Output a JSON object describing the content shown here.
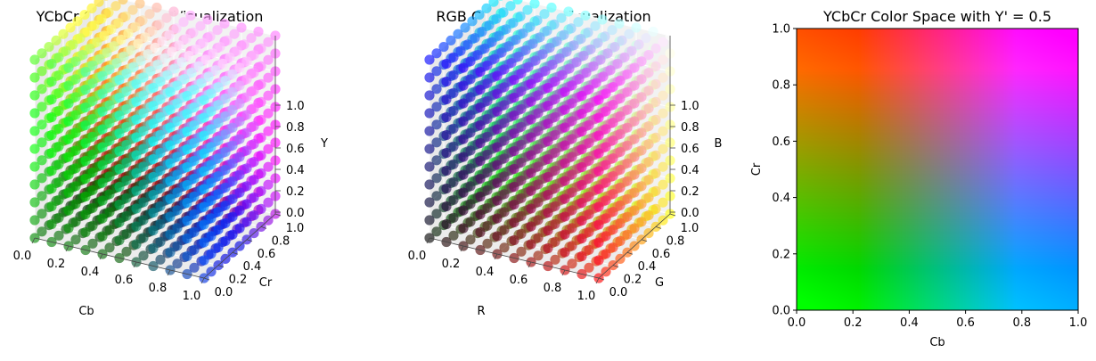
{
  "chart_data": [
    {
      "type": "scatter",
      "title": "YCbCr Color Space Visualization",
      "xlabel": "Cb",
      "ylabel": "Cr",
      "zlabel": "Y",
      "xlim": [
        0,
        1
      ],
      "ylim": [
        0,
        1
      ],
      "zlim": [
        0,
        1
      ],
      "xticks": [
        "0.0",
        "0.2",
        "0.4",
        "0.6",
        "0.8",
        "1.0"
      ],
      "yticks": [
        "0.0",
        "0.2",
        "0.4",
        "0.6",
        "0.8",
        "1.0"
      ],
      "zticks": [
        "0.0",
        "0.2",
        "0.4",
        "0.6",
        "0.8",
        "1.0"
      ],
      "grid_steps": 11,
      "color_mode": "ycbcr",
      "grid": true
    },
    {
      "type": "scatter",
      "title": "RGB Color Space Visualization",
      "xlabel": "R",
      "ylabel": "G",
      "zlabel": "B",
      "xlim": [
        0,
        1
      ],
      "ylim": [
        0,
        1
      ],
      "zlim": [
        0,
        1
      ],
      "xticks": [
        "0.0",
        "0.2",
        "0.4",
        "0.6",
        "0.8",
        "1.0"
      ],
      "yticks": [
        "0.0",
        "0.2",
        "0.4",
        "0.6",
        "0.8",
        "1.0"
      ],
      "zticks": [
        "0.0",
        "0.2",
        "0.4",
        "0.6",
        "0.8",
        "1.0"
      ],
      "grid_steps": 11,
      "color_mode": "rgb",
      "grid": true
    },
    {
      "type": "heatmap",
      "title": "YCbCr Color Space with Y' = 0.5",
      "xlabel": "Cb",
      "ylabel": "Cr",
      "y_fixed": 0.5,
      "xlim": [
        0,
        1
      ],
      "ylim": [
        0,
        1
      ],
      "xticks": [
        "0.0",
        "0.2",
        "0.4",
        "0.6",
        "0.8",
        "1.0"
      ],
      "yticks": [
        "0.0",
        "0.2",
        "0.4",
        "0.6",
        "0.8",
        "1.0"
      ],
      "color_mode": "ycbcr"
    }
  ]
}
